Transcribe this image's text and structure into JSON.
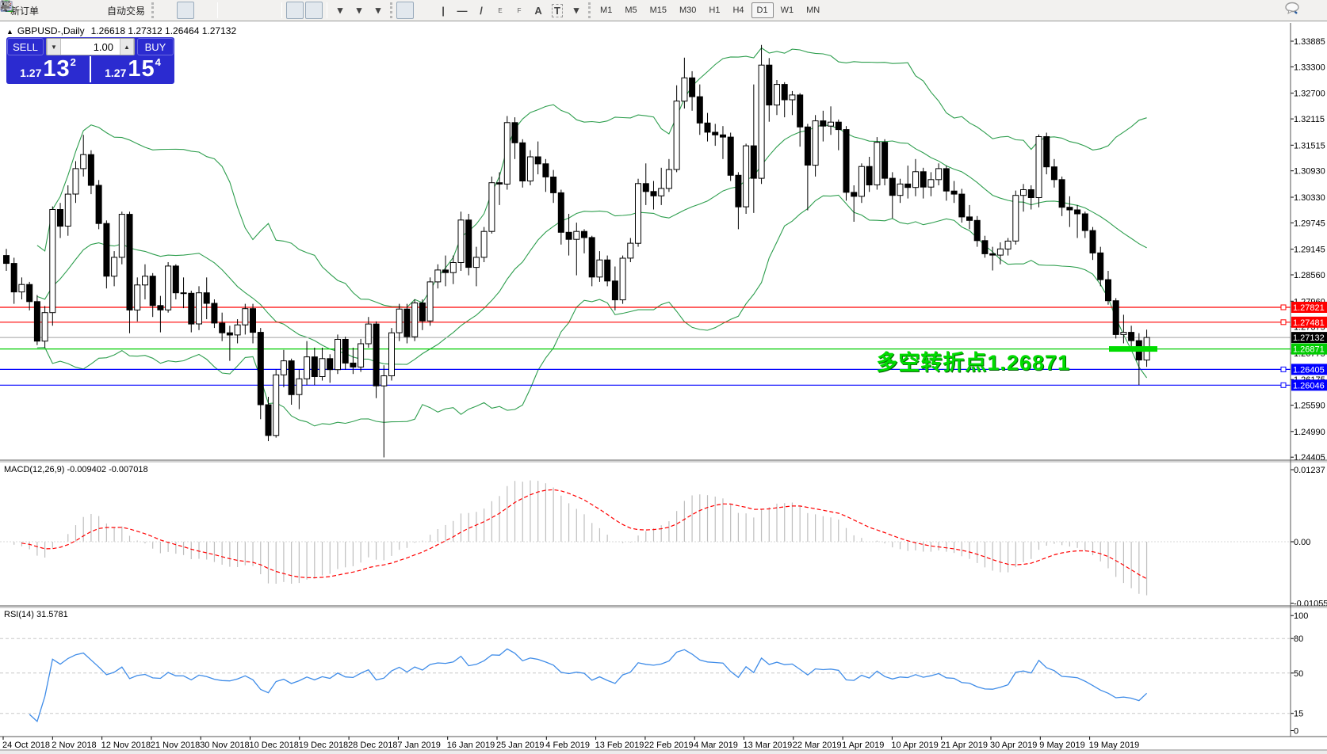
{
  "toolbar": {
    "new_order_label": "新订单",
    "autotrading_label": "自动交易",
    "timeframes": [
      "M1",
      "M5",
      "M15",
      "M30",
      "H1",
      "H4",
      "D1",
      "W1",
      "MN"
    ],
    "active_timeframe": "D1",
    "icon_glyphs": {
      "vertical_line": "|",
      "horizontal_line": "—",
      "trendline": "/",
      "channel": "E",
      "fibonacci": "F",
      "text": "A",
      "label": "T",
      "dropdown": "▾"
    }
  },
  "chart_header": {
    "collapse_glyph": "▲",
    "symbol": "GBPUSD-,Daily",
    "ohlc": "1.26618 1.27312 1.26464 1.27132"
  },
  "trade_panel": {
    "sell_label": "SELL",
    "buy_label": "BUY",
    "lot_value": "1.00",
    "decrease_glyph": "▼",
    "increase_glyph": "▲",
    "sell_price": {
      "small": "1.27",
      "big": "13",
      "sup": "2"
    },
    "buy_price": {
      "small": "1.27",
      "big": "15",
      "sup": "4"
    }
  },
  "annotation": {
    "text": "多空转折点1.26871",
    "color": "#00DC00"
  },
  "indicator_labels": {
    "macd": "MACD(12,26,9) -0.009402 -0.007018",
    "rsi": "RSI(14) 31.5781"
  },
  "chart_data": [
    {
      "type": "candlestick",
      "symbol": "GBPUSD",
      "timeframe": "Daily",
      "last_bar": {
        "open": 1.26618,
        "high": 1.27312,
        "low": 1.26464,
        "close": 1.27132
      },
      "ylim": [
        1.24355,
        1.343
      ],
      "y_ticks": [
        "1.33885",
        "1.33300",
        "1.32700",
        "1.32115",
        "1.31515",
        "1.30930",
        "1.30330",
        "1.29745",
        "1.29145",
        "1.28560",
        "1.27960",
        "1.27375",
        "1.26775",
        "1.26175",
        "1.25590",
        "1.24990",
        "1.24405"
      ],
      "x_labels": [
        "24 Oct 2018",
        "2 Nov 2018",
        "12 Nov 2018",
        "21 Nov 2018",
        "30 Nov 2018",
        "10 Dec 2018",
        "19 Dec 2018",
        "28 Dec 2018",
        "7 Jan 2019",
        "16 Jan 2019",
        "25 Jan 2019",
        "4 Feb 2019",
        "13 Feb 2019",
        "22 Feb 2019",
        "4 Mar 2019",
        "13 Mar 2019",
        "22 Mar 2019",
        "1 Apr 2019",
        "10 Apr 2019",
        "21 Apr 2019",
        "30 Apr 2019",
        "9 May 2019",
        "19 May 2019"
      ],
      "overlays": {
        "bollinger": {
          "period": 20,
          "deviation": 2,
          "color": "#2e9e4e"
        }
      },
      "hlines": [
        {
          "price": 1.27821,
          "color": "#ff0000"
        },
        {
          "price": 1.27481,
          "color": "#ff0000"
        },
        {
          "price": 1.26871,
          "color": "#00cc00"
        },
        {
          "price": 1.26405,
          "color": "#0000ff"
        },
        {
          "price": 1.26046,
          "color": "#0000ff"
        }
      ],
      "current_price": {
        "value": 1.27132,
        "line_color": "#b4b4b4",
        "label_bg": "#000000"
      },
      "highlight_segment": {
        "price": 1.26871,
        "color": "#00dc00"
      },
      "candles": [
        [
          1.29,
          1.2915,
          1.2865,
          1.2882
        ],
        [
          1.2882,
          1.2895,
          1.279,
          1.2817
        ],
        [
          1.2817,
          1.285,
          1.28,
          1.2834
        ],
        [
          1.2834,
          1.284,
          1.2775,
          1.2795
        ],
        [
          1.2795,
          1.281,
          1.2696,
          1.2705
        ],
        [
          1.2705,
          1.2785,
          1.269,
          1.277
        ],
        [
          1.277,
          1.3012,
          1.274,
          1.3005
        ],
        [
          1.3005,
          1.302,
          1.294,
          1.2967
        ],
        [
          1.2967,
          1.306,
          1.2945,
          1.304
        ],
        [
          1.304,
          1.3115,
          1.302,
          1.3098
        ],
        [
          1.3098,
          1.3175,
          1.308,
          1.313
        ],
        [
          1.313,
          1.314,
          1.304,
          1.306
        ],
        [
          1.306,
          1.3072,
          1.296,
          1.2973
        ],
        [
          1.2973,
          1.298,
          1.2825,
          1.2853
        ],
        [
          1.2853,
          1.291,
          1.283,
          1.2896
        ],
        [
          1.2896,
          1.3,
          1.288,
          1.2994
        ],
        [
          1.2994,
          1.3,
          1.2723,
          1.2776
        ],
        [
          1.2776,
          1.285,
          1.275,
          1.2833
        ],
        [
          1.2833,
          1.288,
          1.28,
          1.2853
        ],
        [
          1.2853,
          1.286,
          1.276,
          1.2786
        ],
        [
          1.2786,
          1.2808,
          1.2725,
          1.2776
        ],
        [
          1.2776,
          1.2885,
          1.277,
          1.2876
        ],
        [
          1.2876,
          1.288,
          1.28,
          1.2815
        ],
        [
          1.2815,
          1.285,
          1.278,
          1.2814
        ],
        [
          1.2814,
          1.282,
          1.2725,
          1.2744
        ],
        [
          1.2744,
          1.283,
          1.273,
          1.2815
        ],
        [
          1.2815,
          1.285,
          1.2755,
          1.2791
        ],
        [
          1.2791,
          1.28,
          1.2735,
          1.2746
        ],
        [
          1.2746,
          1.277,
          1.2705,
          1.2724
        ],
        [
          1.2724,
          1.274,
          1.266,
          1.2719
        ],
        [
          1.2719,
          1.2755,
          1.27,
          1.2742
        ],
        [
          1.2742,
          1.279,
          1.272,
          1.2779
        ],
        [
          1.2779,
          1.279,
          1.27,
          1.2725
        ],
        [
          1.2725,
          1.2735,
          1.2527,
          1.256
        ],
        [
          1.256,
          1.2578,
          1.2477,
          1.249
        ],
        [
          1.249,
          1.264,
          1.2485,
          1.2628
        ],
        [
          1.2628,
          1.2685,
          1.26,
          1.266
        ],
        [
          1.266,
          1.2665,
          1.256,
          1.2583
        ],
        [
          1.2583,
          1.264,
          1.255,
          1.2619
        ],
        [
          1.2619,
          1.2705,
          1.2605,
          1.2669
        ],
        [
          1.2669,
          1.269,
          1.2605,
          1.2624
        ],
        [
          1.2624,
          1.269,
          1.2615,
          1.2665
        ],
        [
          1.2665,
          1.2675,
          1.261,
          1.264
        ],
        [
          1.264,
          1.272,
          1.263,
          1.2709
        ],
        [
          1.2709,
          1.2715,
          1.264,
          1.2655
        ],
        [
          1.2655,
          1.269,
          1.263,
          1.2646
        ],
        [
          1.2646,
          1.271,
          1.2635,
          1.2699
        ],
        [
          1.2699,
          1.276,
          1.269,
          1.2744
        ],
        [
          1.2744,
          1.275,
          1.2575,
          1.2603
        ],
        [
          1.2603,
          1.265,
          1.244,
          1.2626
        ],
        [
          1.2626,
          1.2735,
          1.2615,
          1.2724
        ],
        [
          1.2724,
          1.279,
          1.2705,
          1.2778
        ],
        [
          1.2778,
          1.279,
          1.27,
          1.2715
        ],
        [
          1.2715,
          1.28,
          1.2705,
          1.2792
        ],
        [
          1.2792,
          1.28,
          1.273,
          1.2751
        ],
        [
          1.2751,
          1.285,
          1.274,
          1.284
        ],
        [
          1.284,
          1.288,
          1.2825,
          1.2867
        ],
        [
          1.2867,
          1.29,
          1.283,
          1.2861
        ],
        [
          1.2861,
          1.29,
          1.2835,
          1.2884
        ],
        [
          1.2884,
          1.3,
          1.2865,
          1.2981
        ],
        [
          1.2981,
          1.2995,
          1.2855,
          1.2873
        ],
        [
          1.2873,
          1.292,
          1.283,
          1.2896
        ],
        [
          1.2896,
          1.2965,
          1.2885,
          1.2955
        ],
        [
          1.2955,
          1.308,
          1.295,
          1.3066
        ],
        [
          1.3066,
          1.309,
          1.3015,
          1.3063
        ],
        [
          1.3063,
          1.3218,
          1.305,
          1.3203
        ],
        [
          1.3203,
          1.3215,
          1.312,
          1.3157
        ],
        [
          1.3157,
          1.3165,
          1.3055,
          1.307
        ],
        [
          1.307,
          1.314,
          1.306,
          1.3125
        ],
        [
          1.3125,
          1.316,
          1.3085,
          1.3109
        ],
        [
          1.3109,
          1.312,
          1.3045,
          1.3079
        ],
        [
          1.3079,
          1.3095,
          1.302,
          1.3043
        ],
        [
          1.3043,
          1.305,
          1.2925,
          1.2953
        ],
        [
          1.2953,
          1.2995,
          1.29,
          1.2937
        ],
        [
          1.2937,
          1.2975,
          1.2855,
          1.2955
        ],
        [
          1.2955,
          1.296,
          1.2905,
          1.2941
        ],
        [
          1.2941,
          1.2945,
          1.283,
          1.2851
        ],
        [
          1.2851,
          1.291,
          1.284,
          1.289
        ],
        [
          1.289,
          1.29,
          1.283,
          1.2842
        ],
        [
          1.2842,
          1.2875,
          1.2775,
          1.2799
        ],
        [
          1.2799,
          1.29,
          1.279,
          1.2894
        ],
        [
          1.2894,
          1.294,
          1.2885,
          1.2928
        ],
        [
          1.2928,
          1.3075,
          1.292,
          1.3064
        ],
        [
          1.3064,
          1.311,
          1.3015,
          1.3046
        ],
        [
          1.3046,
          1.307,
          1.3005,
          1.3036
        ],
        [
          1.3036,
          1.31,
          1.3015,
          1.3053
        ],
        [
          1.3053,
          1.312,
          1.3045,
          1.3096
        ],
        [
          1.3096,
          1.3288,
          1.309,
          1.3252
        ],
        [
          1.3252,
          1.3351,
          1.3235,
          1.3305
        ],
        [
          1.3305,
          1.332,
          1.323,
          1.3262
        ],
        [
          1.3262,
          1.329,
          1.3175,
          1.3202
        ],
        [
          1.3202,
          1.3225,
          1.316,
          1.3181
        ],
        [
          1.3181,
          1.32,
          1.315,
          1.3175
        ],
        [
          1.3175,
          1.3195,
          1.312,
          1.317
        ],
        [
          1.317,
          1.318,
          1.307,
          1.3083
        ],
        [
          1.3083,
          1.309,
          1.296,
          1.3011
        ],
        [
          1.3011,
          1.3155,
          1.2995,
          1.315
        ],
        [
          1.315,
          1.329,
          1.2997,
          1.3076
        ],
        [
          1.3076,
          1.338,
          1.3063,
          1.3334
        ],
        [
          1.3334,
          1.335,
          1.3205,
          1.3243
        ],
        [
          1.3243,
          1.33,
          1.322,
          1.329
        ],
        [
          1.329,
          1.3295,
          1.3215,
          1.3255
        ],
        [
          1.3255,
          1.3275,
          1.322,
          1.3266
        ],
        [
          1.3266,
          1.327,
          1.3148,
          1.3193
        ],
        [
          1.3193,
          1.32,
          1.3003,
          1.3106
        ],
        [
          1.3106,
          1.322,
          1.308,
          1.3207
        ],
        [
          1.3207,
          1.323,
          1.316,
          1.3195
        ],
        [
          1.3195,
          1.324,
          1.3175,
          1.3204
        ],
        [
          1.3204,
          1.321,
          1.314,
          1.3187
        ],
        [
          1.3187,
          1.3195,
          1.3025,
          1.3044
        ],
        [
          1.3044,
          1.306,
          1.2977,
          1.3035
        ],
        [
          1.3035,
          1.311,
          1.302,
          1.3103
        ],
        [
          1.3103,
          1.3125,
          1.3045,
          1.3061
        ],
        [
          1.3061,
          1.317,
          1.305,
          1.3158
        ],
        [
          1.3158,
          1.3165,
          1.306,
          1.3076
        ],
        [
          1.3076,
          1.309,
          1.2985,
          1.3037
        ],
        [
          1.3037,
          1.3075,
          1.302,
          1.3063
        ],
        [
          1.3063,
          1.3105,
          1.303,
          1.3055
        ],
        [
          1.3055,
          1.312,
          1.3035,
          1.3091
        ],
        [
          1.3091,
          1.31,
          1.303,
          1.3056
        ],
        [
          1.3056,
          1.309,
          1.3035,
          1.3073
        ],
        [
          1.3073,
          1.311,
          1.306,
          1.3098
        ],
        [
          1.3098,
          1.3105,
          1.3025,
          1.3047
        ],
        [
          1.3047,
          1.307,
          1.302,
          1.304
        ],
        [
          1.304,
          1.3052,
          1.2975,
          1.2988
        ],
        [
          1.2988,
          1.3015,
          1.296,
          1.298
        ],
        [
          1.298,
          1.299,
          1.292,
          1.2934
        ],
        [
          1.2934,
          1.2945,
          1.2895,
          1.2904
        ],
        [
          1.2904,
          1.292,
          1.2866,
          1.2901
        ],
        [
          1.2901,
          1.293,
          1.288,
          1.2915
        ],
        [
          1.2915,
          1.294,
          1.29,
          1.2933
        ],
        [
          1.2933,
          1.3048,
          1.2925,
          1.3037
        ],
        [
          1.3037,
          1.3063,
          1.3,
          1.305
        ],
        [
          1.305,
          1.306,
          1.3005,
          1.3032
        ],
        [
          1.3032,
          1.3176,
          1.301,
          1.3171
        ],
        [
          1.3171,
          1.318,
          1.3085,
          1.3102
        ],
        [
          1.3102,
          1.312,
          1.3055,
          1.3073
        ],
        [
          1.3073,
          1.308,
          1.299,
          1.301
        ],
        [
          1.301,
          1.3035,
          1.2965,
          1.3004
        ],
        [
          1.3004,
          1.3015,
          1.294,
          1.2995
        ],
        [
          1.2995,
          1.3,
          1.294,
          1.2957
        ],
        [
          1.2957,
          1.2965,
          1.289,
          1.2906
        ],
        [
          1.2906,
          1.292,
          1.283,
          1.2845
        ],
        [
          1.2845,
          1.2865,
          1.2788,
          1.2797
        ],
        [
          1.2797,
          1.2803,
          1.2711,
          1.272
        ],
        [
          1.272,
          1.2765,
          1.27,
          1.2725
        ],
        [
          1.2725,
          1.274,
          1.2685,
          1.2706
        ],
        [
          1.2706,
          1.2723,
          1.2605,
          1.2662
        ],
        [
          1.26618,
          1.27312,
          1.26464,
          1.27132
        ]
      ]
    },
    {
      "type": "macd",
      "label": "MACD(12,26,9)",
      "params": [
        12,
        26,
        9
      ],
      "value": -0.009402,
      "signal_value": -0.007018,
      "ylim": [
        -0.010873,
        0.013726
      ],
      "y_ticks": [
        "0.01237",
        "0.00",
        "-0.010553"
      ],
      "y_tick_values": [
        0.01237,
        0.0,
        -0.010553
      ],
      "histogram_color": "#bebebe",
      "signal_color": "#ff0000"
    },
    {
      "type": "rsi",
      "label": "RSI(14)",
      "period": 14,
      "value": 31.5781,
      "levels": [
        80,
        50,
        15
      ],
      "ylim": [
        0,
        100
      ],
      "y_ticks": [
        "100",
        "80",
        "50",
        "15",
        "0"
      ],
      "y_tick_values": [
        100,
        80,
        50,
        15,
        0
      ],
      "color": "#3f8ce8",
      "level_color": "#c8c8c8"
    }
  ]
}
